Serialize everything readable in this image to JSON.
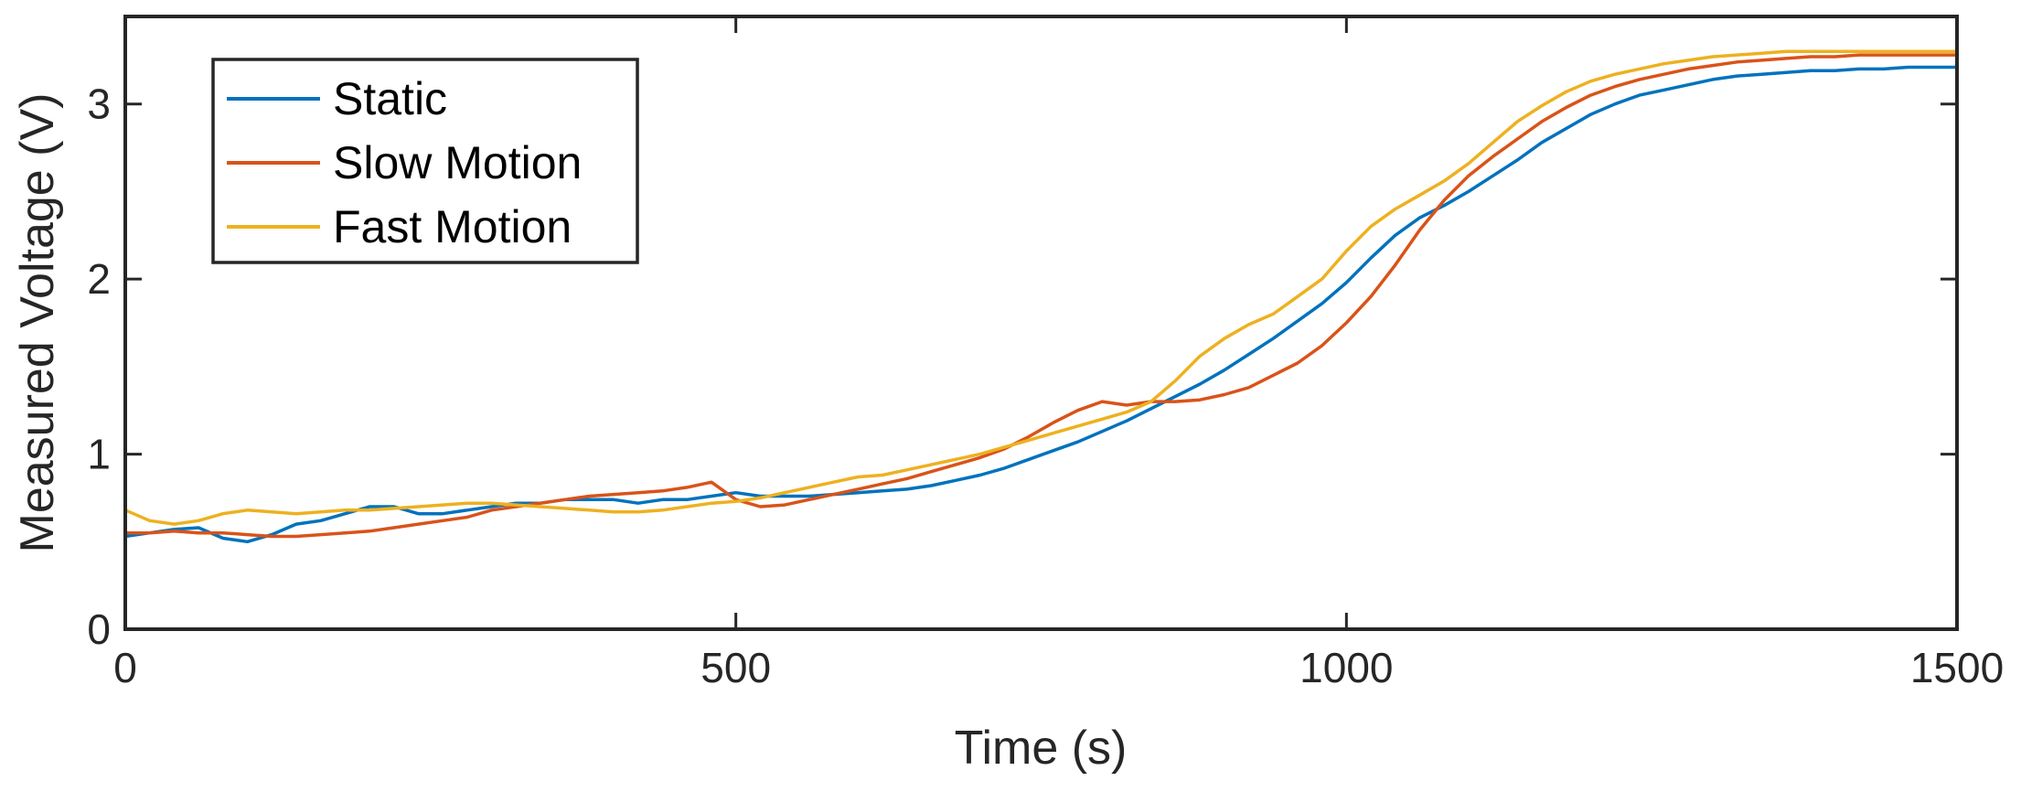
{
  "chart_data": {
    "type": "line",
    "title": "",
    "xlabel": "Time (s)",
    "ylabel": "Measured Voltage (V)",
    "xlim": [
      0,
      1500
    ],
    "ylim": [
      0,
      3.5
    ],
    "xticks": [
      0,
      500,
      1000,
      1500
    ],
    "yticks": [
      0,
      1,
      2,
      3
    ],
    "grid": false,
    "legend": "top-left",
    "series": [
      {
        "name": "Static",
        "color": "#0072BD",
        "x": [
          0,
          20,
          40,
          60,
          80,
          100,
          120,
          140,
          160,
          180,
          200,
          220,
          240,
          260,
          280,
          300,
          320,
          340,
          360,
          380,
          400,
          420,
          440,
          460,
          480,
          500,
          520,
          540,
          560,
          580,
          600,
          620,
          640,
          660,
          680,
          700,
          720,
          740,
          760,
          780,
          800,
          820,
          840,
          860,
          880,
          900,
          920,
          940,
          960,
          980,
          1000,
          1020,
          1040,
          1060,
          1080,
          1100,
          1120,
          1140,
          1160,
          1180,
          1200,
          1220,
          1240,
          1260,
          1280,
          1300,
          1320,
          1340,
          1360,
          1380,
          1400,
          1420,
          1440,
          1460,
          1480,
          1500
        ],
        "y": [
          0.53,
          0.55,
          0.57,
          0.58,
          0.52,
          0.5,
          0.54,
          0.6,
          0.62,
          0.66,
          0.7,
          0.7,
          0.66,
          0.66,
          0.68,
          0.7,
          0.72,
          0.72,
          0.74,
          0.74,
          0.74,
          0.72,
          0.74,
          0.74,
          0.76,
          0.78,
          0.76,
          0.76,
          0.76,
          0.77,
          0.78,
          0.79,
          0.8,
          0.82,
          0.85,
          0.88,
          0.92,
          0.97,
          1.02,
          1.07,
          1.13,
          1.19,
          1.26,
          1.33,
          1.4,
          1.48,
          1.57,
          1.66,
          1.76,
          1.86,
          1.98,
          2.12,
          2.25,
          2.35,
          2.42,
          2.5,
          2.59,
          2.68,
          2.78,
          2.86,
          2.94,
          3.0,
          3.05,
          3.08,
          3.11,
          3.14,
          3.16,
          3.17,
          3.18,
          3.19,
          3.19,
          3.2,
          3.2,
          3.21,
          3.21,
          3.21
        ]
      },
      {
        "name": "Slow Motion",
        "color": "#D95319",
        "x": [
          0,
          20,
          40,
          60,
          80,
          100,
          120,
          140,
          160,
          180,
          200,
          220,
          240,
          260,
          280,
          300,
          320,
          340,
          360,
          380,
          400,
          420,
          440,
          460,
          480,
          500,
          520,
          540,
          560,
          580,
          600,
          620,
          640,
          660,
          680,
          700,
          720,
          740,
          760,
          780,
          800,
          820,
          840,
          860,
          880,
          900,
          920,
          940,
          960,
          980,
          1000,
          1020,
          1040,
          1060,
          1080,
          1100,
          1120,
          1140,
          1160,
          1180,
          1200,
          1220,
          1240,
          1260,
          1280,
          1300,
          1320,
          1340,
          1360,
          1380,
          1400,
          1420,
          1440,
          1460,
          1480,
          1500
        ],
        "y": [
          0.55,
          0.55,
          0.56,
          0.55,
          0.55,
          0.54,
          0.53,
          0.53,
          0.54,
          0.55,
          0.56,
          0.58,
          0.6,
          0.62,
          0.64,
          0.68,
          0.7,
          0.72,
          0.74,
          0.76,
          0.77,
          0.78,
          0.79,
          0.81,
          0.84,
          0.74,
          0.7,
          0.71,
          0.74,
          0.77,
          0.8,
          0.83,
          0.86,
          0.9,
          0.94,
          0.98,
          1.03,
          1.1,
          1.18,
          1.25,
          1.3,
          1.28,
          1.3,
          1.3,
          1.31,
          1.34,
          1.38,
          1.45,
          1.52,
          1.62,
          1.75,
          1.9,
          2.08,
          2.28,
          2.45,
          2.59,
          2.7,
          2.8,
          2.9,
          2.98,
          3.05,
          3.1,
          3.14,
          3.17,
          3.2,
          3.22,
          3.24,
          3.25,
          3.26,
          3.27,
          3.27,
          3.28,
          3.28,
          3.28,
          3.28,
          3.28
        ]
      },
      {
        "name": "Fast Motion",
        "color": "#EDB120",
        "x": [
          0,
          20,
          40,
          60,
          80,
          100,
          120,
          140,
          160,
          180,
          200,
          220,
          240,
          260,
          280,
          300,
          320,
          340,
          360,
          380,
          400,
          420,
          440,
          460,
          480,
          500,
          520,
          540,
          560,
          580,
          600,
          620,
          640,
          660,
          680,
          700,
          720,
          740,
          760,
          780,
          800,
          820,
          840,
          860,
          880,
          900,
          920,
          940,
          960,
          980,
          1000,
          1020,
          1040,
          1060,
          1080,
          1100,
          1120,
          1140,
          1160,
          1180,
          1200,
          1220,
          1240,
          1260,
          1280,
          1300,
          1320,
          1340,
          1360,
          1380,
          1400,
          1420,
          1440,
          1460,
          1480,
          1500
        ],
        "y": [
          0.68,
          0.62,
          0.6,
          0.62,
          0.66,
          0.68,
          0.67,
          0.66,
          0.67,
          0.68,
          0.68,
          0.69,
          0.7,
          0.71,
          0.72,
          0.72,
          0.71,
          0.7,
          0.69,
          0.68,
          0.67,
          0.67,
          0.68,
          0.7,
          0.72,
          0.73,
          0.75,
          0.78,
          0.81,
          0.84,
          0.87,
          0.88,
          0.91,
          0.94,
          0.97,
          1.0,
          1.04,
          1.08,
          1.12,
          1.16,
          1.2,
          1.24,
          1.3,
          1.42,
          1.56,
          1.66,
          1.74,
          1.8,
          1.9,
          2.0,
          2.16,
          2.3,
          2.4,
          2.48,
          2.56,
          2.66,
          2.78,
          2.9,
          2.99,
          3.07,
          3.13,
          3.17,
          3.2,
          3.23,
          3.25,
          3.27,
          3.28,
          3.29,
          3.3,
          3.3,
          3.3,
          3.3,
          3.3,
          3.3,
          3.3,
          3.3
        ]
      }
    ]
  }
}
